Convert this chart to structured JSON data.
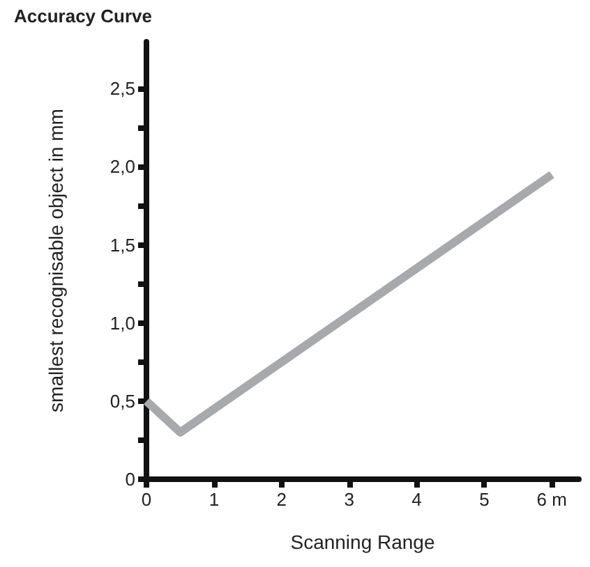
{
  "chart_data": {
    "type": "line",
    "title": "Accuracy Curve",
    "xlabel": "Scanning Range",
    "ylabel": "smallest recognisable object in mm",
    "x": [
      0,
      0.5,
      6
    ],
    "series": [
      {
        "color": "#a7a9ac",
        "values": [
          0.5,
          0.3,
          1.95
        ]
      }
    ],
    "xlim": [
      0,
      6.4
    ],
    "xticks": [
      0,
      1,
      2,
      3,
      4,
      5,
      {
        "value": 6,
        "label": "6 m"
      }
    ],
    "ylim": [
      0,
      2.8
    ],
    "yticks": [
      0,
      {
        "value": 0.25,
        "label": null
      },
      {
        "value": 0.5,
        "label": "0,5"
      },
      {
        "value": 0.75,
        "label": null
      },
      {
        "value": 1,
        "label": "1,0"
      },
      {
        "value": 1.25,
        "label": null
      },
      {
        "value": 1.5,
        "label": "1,5"
      },
      {
        "value": 1.75,
        "label": null
      },
      {
        "value": 2,
        "label": "2,0"
      },
      {
        "value": 2.25,
        "label": null
      },
      {
        "value": 2.5,
        "label": "2,5"
      }
    ],
    "grid": false,
    "marker": "none",
    "line_style": "solid"
  }
}
